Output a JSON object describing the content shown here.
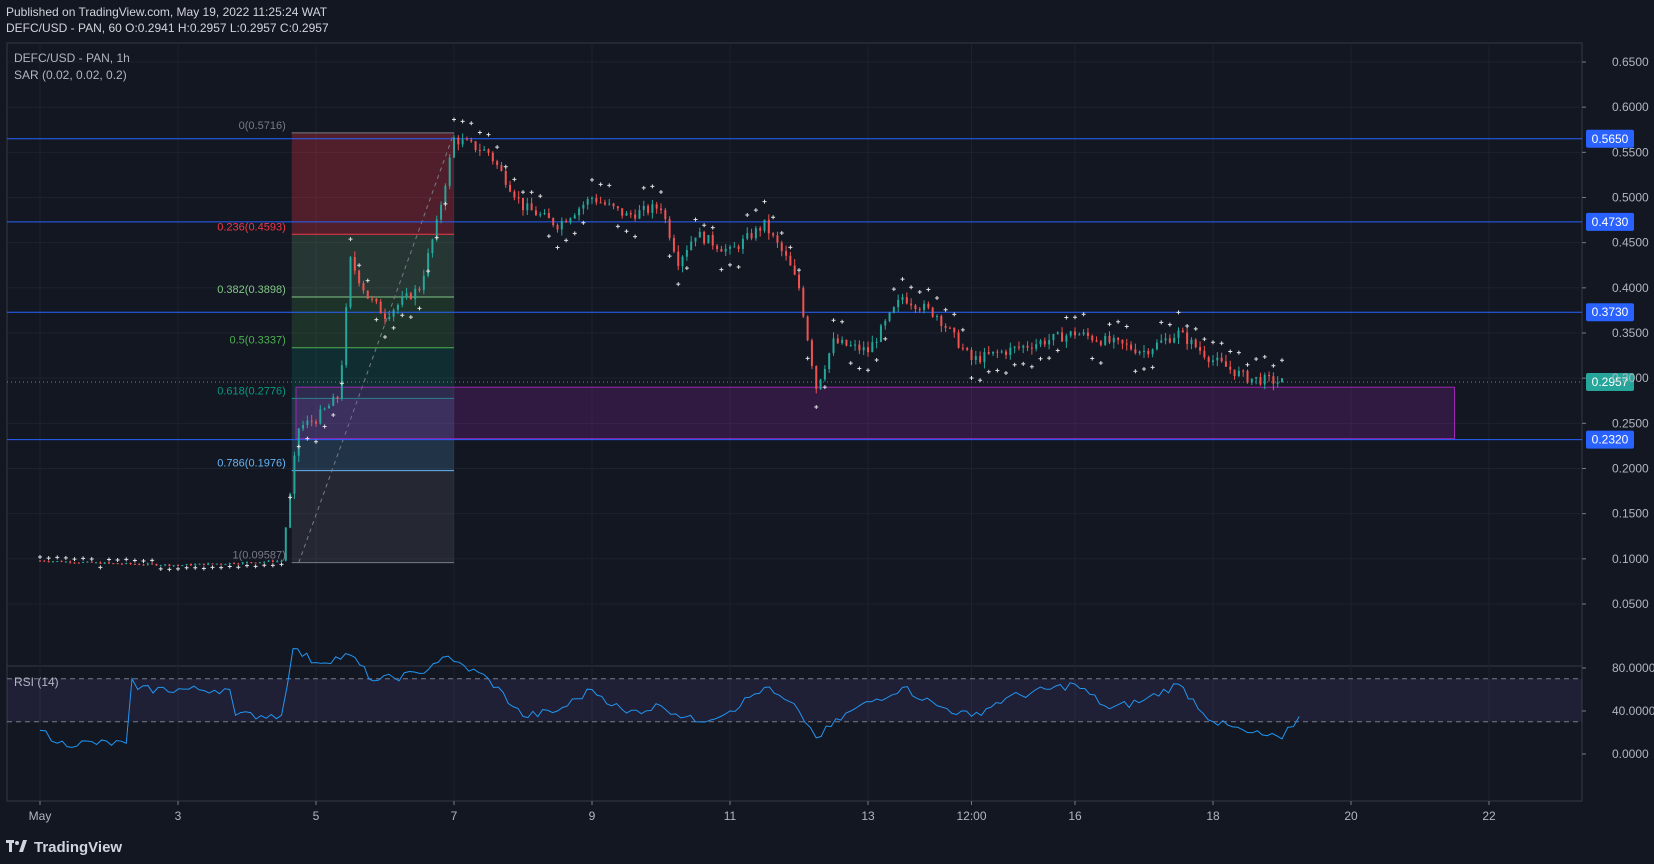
{
  "header": {
    "published": "Published on TradingView.com, May 19, 2022 11:25:24 WAT",
    "ohlc": "DEFC/USD - PAN, 60 O:0.2941 H:0.2957 L:0.2957 C:0.2957"
  },
  "pane_labels": {
    "symbol": "DEFC/USD - PAN, 1h",
    "sar": "SAR (0.02, 0.02, 0.2)",
    "rsi": "RSI (14)"
  },
  "footer": {
    "brand": "TradingView",
    "logo_icon": "tradingview-logo-icon"
  },
  "colors": {
    "background": "#131722",
    "up": "#26a69a",
    "down": "#ef5350",
    "hline": "#2962ff",
    "zone": "#9c27b0",
    "rsi_line": "#2196f3",
    "rsi_band": "#7e57c2",
    "sar": "#e0e0e0"
  },
  "chart_data": [
    {
      "type": "candlestick",
      "title": "DEFC/USD - PAN, 1h",
      "x_ticks": [
        "May",
        "3",
        "5",
        "7",
        "9",
        "11",
        "13",
        "12:00",
        "16",
        "18",
        "20",
        "22"
      ],
      "y_ticks": [
        "0.6500",
        "0.6000",
        "0.5500",
        "0.5000",
        "0.4500",
        "0.4000",
        "0.3500",
        "0.3000",
        "0.2500",
        "0.2000",
        "0.1500",
        "0.1000",
        "0.0500"
      ],
      "ylim": [
        0.0,
        0.68
      ],
      "grid": true,
      "price_path": [
        [
          "May 1",
          0.098
        ],
        [
          "May 2",
          0.095
        ],
        [
          "May 3",
          0.093
        ],
        [
          "May 4",
          0.096
        ],
        [
          "May 4 12:00",
          0.098
        ],
        [
          "May 4 18:00",
          0.245
        ],
        [
          "May 5",
          0.255
        ],
        [
          "May 5 08:00",
          0.28
        ],
        [
          "May 5 12:00",
          0.43
        ],
        [
          "May 5 18:00",
          0.39
        ],
        [
          "May 6",
          0.37
        ],
        [
          "May 6 12:00",
          0.4
        ],
        [
          "May 6 18:00",
          0.47
        ],
        [
          "May 7",
          0.565
        ],
        [
          "May 7 12:00",
          0.55
        ],
        [
          "May 8",
          0.49
        ],
        [
          "May 8 12:00",
          0.47
        ],
        [
          "May 9",
          0.5
        ],
        [
          "May 9 12:00",
          0.48
        ],
        [
          "May 10",
          0.49
        ],
        [
          "May 10 06:00",
          0.43
        ],
        [
          "May 10 12:00",
          0.46
        ],
        [
          "May 11",
          0.44
        ],
        [
          "May 11 12:00",
          0.47
        ],
        [
          "May 11 20:00",
          0.43
        ],
        [
          "May 12",
          0.4
        ],
        [
          "May 12 06:00",
          0.29
        ],
        [
          "May 12 12:00",
          0.34
        ],
        [
          "May 13",
          0.33
        ],
        [
          "May 13 12:00",
          0.39
        ],
        [
          "May 14",
          0.37
        ],
        [
          "May 14 12:00",
          0.32
        ],
        [
          "May 15",
          0.33
        ],
        [
          "May 16",
          0.35
        ],
        [
          "May 16 12:00",
          0.34
        ],
        [
          "May 17",
          0.33
        ],
        [
          "May 17 12:00",
          0.35
        ],
        [
          "May 18",
          0.32
        ],
        [
          "May 18 12:00",
          0.3
        ],
        [
          "May 19",
          0.2957
        ]
      ],
      "horizontal_levels": [
        {
          "value": 0.565,
          "label": "0.5650"
        },
        {
          "value": 0.473,
          "label": "0.4730"
        },
        {
          "value": 0.373,
          "label": "0.3730"
        },
        {
          "value": 0.232,
          "label": "0.2320"
        }
      ],
      "last_price": {
        "value": 0.2957,
        "label": "0.2957"
      },
      "fibonacci": {
        "levels": [
          {
            "label": "0(0.5716)",
            "value": 0.5716,
            "color": "#787b86"
          },
          {
            "label": "0.236(0.4593)",
            "value": 0.4593,
            "color": "#f23645"
          },
          {
            "label": "0.382(0.3898)",
            "value": 0.3898,
            "color": "#81c784"
          },
          {
            "label": "0.5(0.3337)",
            "value": 0.3337,
            "color": "#4caf50"
          },
          {
            "label": "0.618(0.2776)",
            "value": 0.2776,
            "color": "#089981"
          },
          {
            "label": "0.786(0.1976)",
            "value": 0.1976,
            "color": "#64b5f6"
          },
          {
            "label": "1(0.09587)",
            "value": 0.09587,
            "color": "#787b86"
          }
        ]
      },
      "demand_zone": {
        "top": 0.29,
        "bottom": 0.233
      }
    },
    {
      "type": "line",
      "title": "RSI (14)",
      "y_ticks": [
        "80.0000",
        "40.0000",
        "0.0000"
      ],
      "ylim": [
        0,
        100
      ],
      "band": [
        30,
        70
      ],
      "values": [
        [
          "May 1",
          22
        ],
        [
          "May 1 06:00",
          10
        ],
        [
          "May 2 06:00",
          10
        ],
        [
          "May 2 08:00",
          70
        ],
        [
          "May 2 10:00",
          60
        ],
        [
          "May 3 18:00",
          60
        ],
        [
          "May 3 20:00",
          36
        ],
        [
          "May 4 12:00",
          36
        ],
        [
          "May 4 16:00",
          98
        ],
        [
          "May 5",
          85
        ],
        [
          "May 5 12:00",
          92
        ],
        [
          "May 5 20:00",
          68
        ],
        [
          "May 6 12:00",
          75
        ],
        [
          "May 6 20:00",
          90
        ],
        [
          "May 7",
          86
        ],
        [
          "May 7 12:00",
          70
        ],
        [
          "May 8",
          35
        ],
        [
          "May 8 12:00",
          40
        ],
        [
          "May 9",
          60
        ],
        [
          "May 9 12:00",
          38
        ],
        [
          "May 10",
          45
        ],
        [
          "May 10 12:00",
          30
        ],
        [
          "May 11",
          40
        ],
        [
          "May 11 12:00",
          62
        ],
        [
          "May 12",
          40
        ],
        [
          "May 12 06:00",
          15
        ],
        [
          "May 12 18:00",
          40
        ],
        [
          "May 13 12:00",
          62
        ],
        [
          "May 14",
          45
        ],
        [
          "May 14 12:00",
          35
        ],
        [
          "May 15",
          52
        ],
        [
          "May 16",
          65
        ],
        [
          "May 16 12:00",
          42
        ],
        [
          "May 17",
          50
        ],
        [
          "May 17 12:00",
          65
        ],
        [
          "May 18",
          30
        ],
        [
          "May 18 12:00",
          20
        ],
        [
          "May 19",
          14
        ],
        [
          "May 19 06:00",
          35
        ]
      ]
    }
  ]
}
